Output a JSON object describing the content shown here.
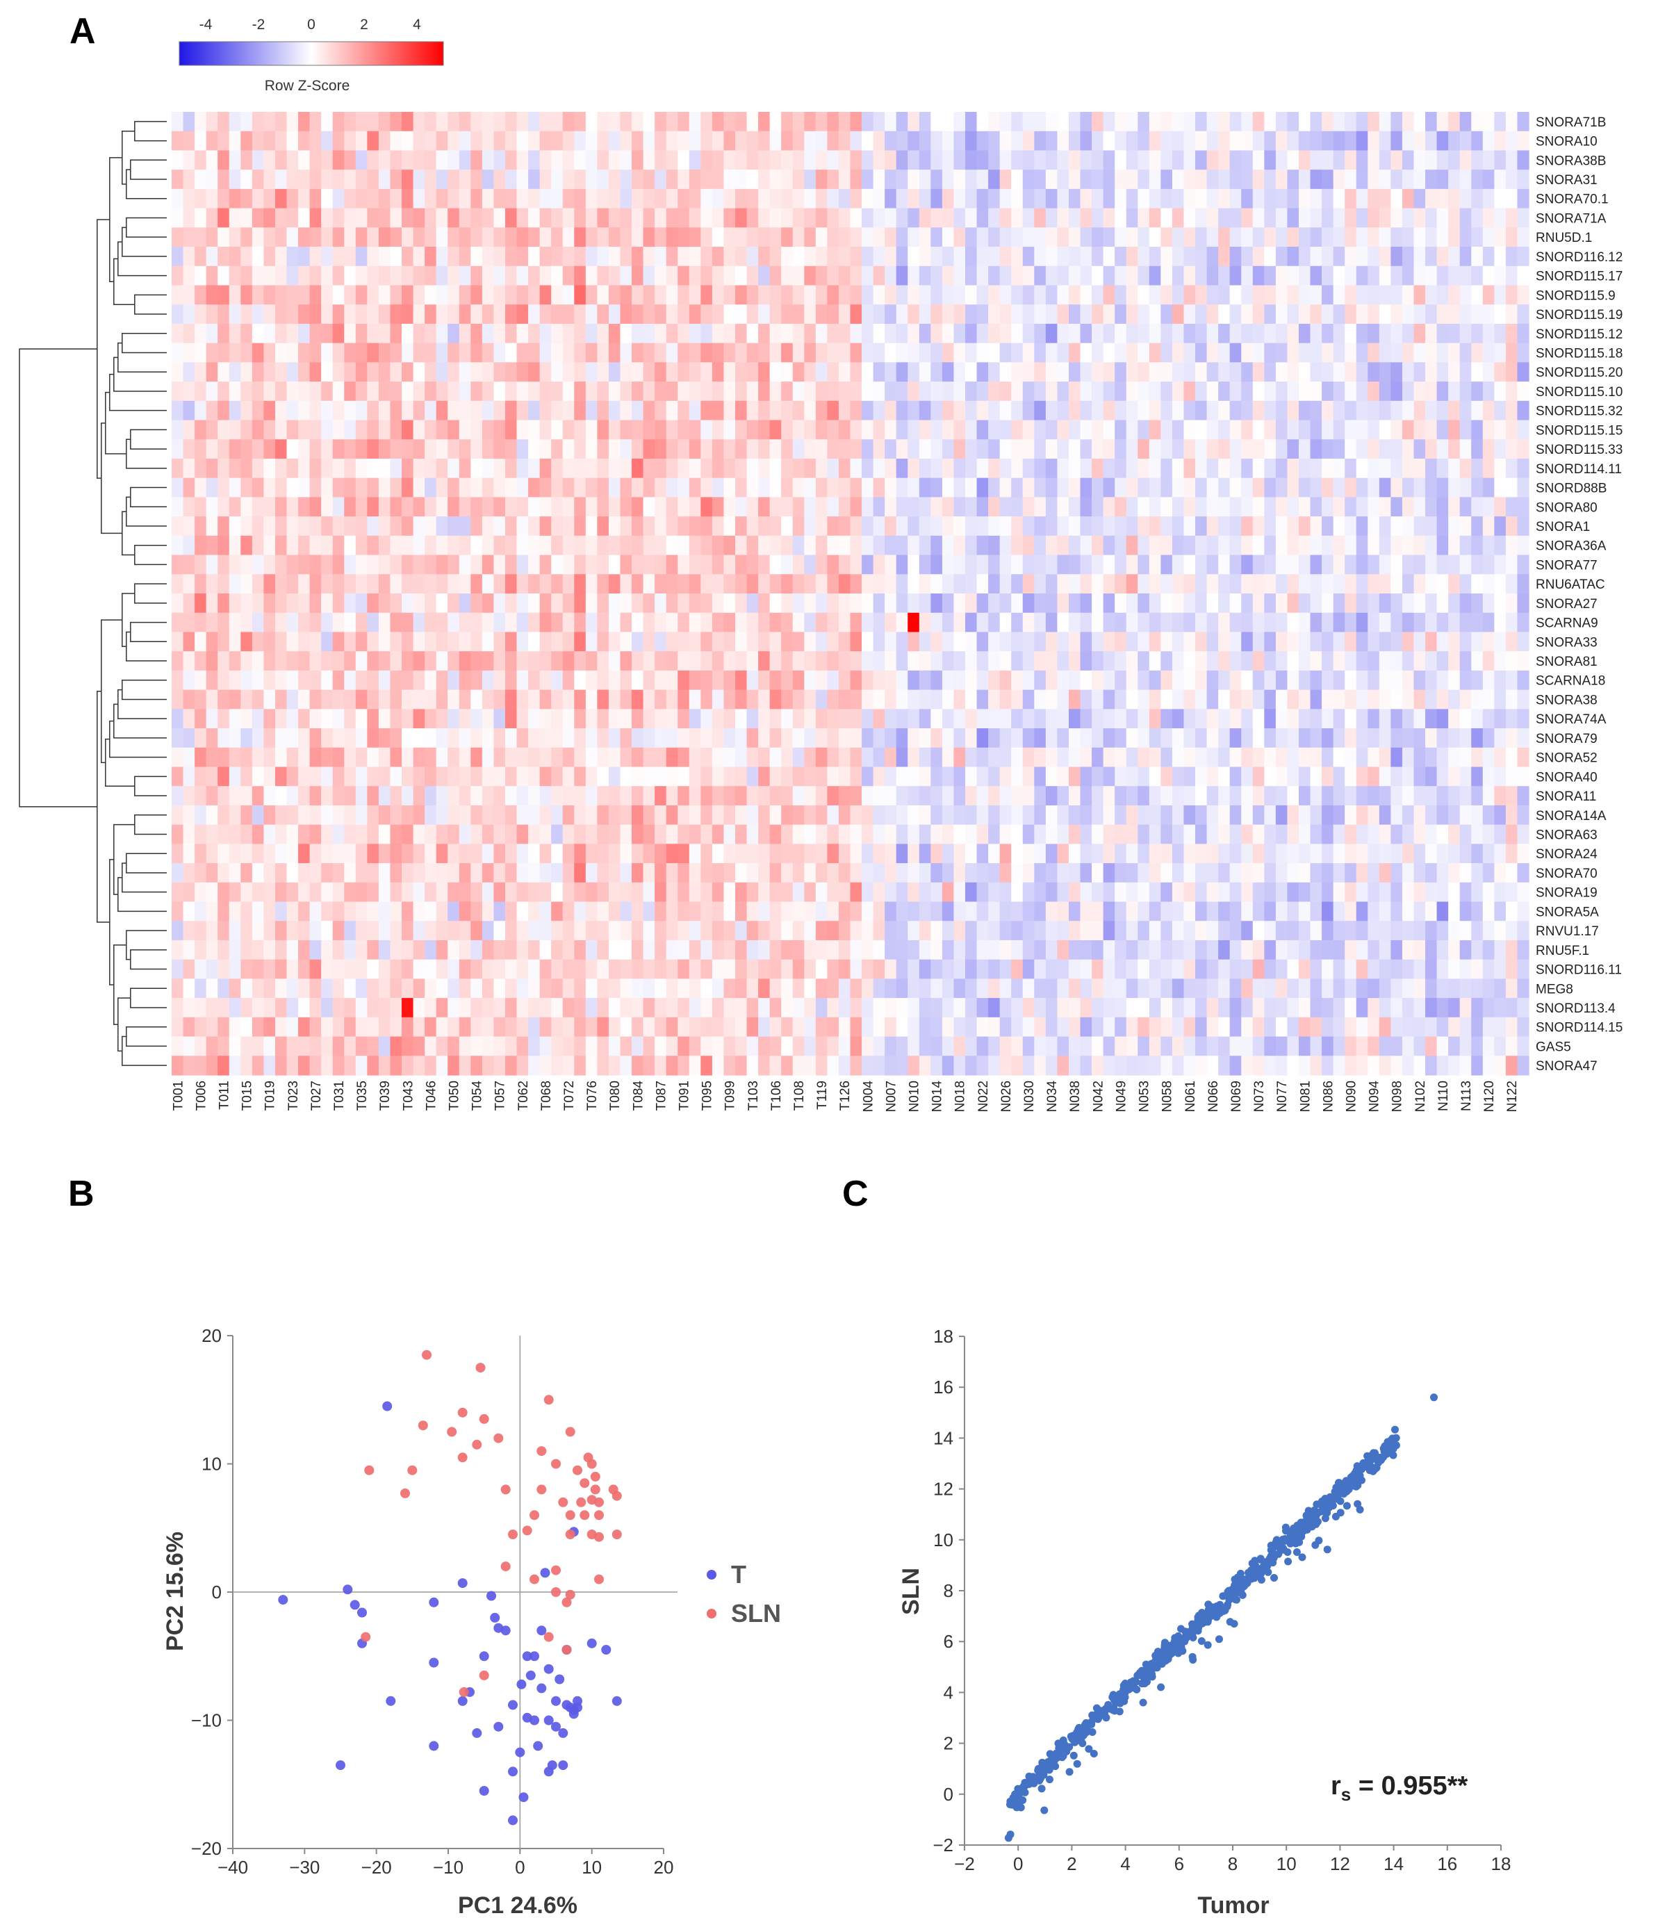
{
  "panels": {
    "A": {
      "letter": "A"
    },
    "B": {
      "letter": "B"
    },
    "C": {
      "letter": "C"
    }
  },
  "colors": {
    "low": "#1f17e6",
    "mid": "#ffffff",
    "high": "#ff0000",
    "pca_T": "#5a5ae6",
    "pca_SLN": "#ef6e6e",
    "scatter": "#4472c4"
  },
  "chart_data": [
    {
      "type": "heatmap",
      "panel": "A",
      "colorbar": {
        "title": "Row Z-Score",
        "ticks": [
          "-4",
          "-2",
          "0",
          "2",
          "4"
        ],
        "range": [
          -5,
          5
        ]
      },
      "rows": [
        "SNORA71B",
        "SNORA10",
        "SNORA38B",
        "SNORA31",
        "SNORA70.1",
        "SNORA71A",
        "RNU5D.1",
        "SNORD116.12",
        "SNORD115.17",
        "SNORD115.9",
        "SNORD115.19",
        "SNORD115.12",
        "SNORD115.18",
        "SNORD115.20",
        "SNORD115.10",
        "SNORD115.32",
        "SNORD115.15",
        "SNORD115.33",
        "SNORD114.11",
        "SNORD88B",
        "SNORA80",
        "SNORA1",
        "SNORA36A",
        "SNORA77",
        "RNU6ATAC",
        "SNORA27",
        "SCARNA9",
        "SNORA33",
        "SNORA81",
        "SCARNA18",
        "SNORA38",
        "SNORA74A",
        "SNORA79",
        "SNORA52",
        "SNORA40",
        "SNORA11",
        "SNORA14A",
        "SNORA63",
        "SNORA24",
        "SNORA70",
        "SNORA19",
        "SNORA5A",
        "RNVU1.17",
        "RNU5F.1",
        "SNORD116.11",
        "MEG8",
        "SNORD113.4",
        "SNORD114.15",
        "GAS5",
        "SNORA47"
      ],
      "column_labels": [
        "T001",
        "T006",
        "T011",
        "T015",
        "T019",
        "T023",
        "T027",
        "T031",
        "T035",
        "T039",
        "T043",
        "T046",
        "T050",
        "T054",
        "T057",
        "T062",
        "T068",
        "T072",
        "T076",
        "T080",
        "T084",
        "T087",
        "T091",
        "T095",
        "T099",
        "T103",
        "T106",
        "T108",
        "T119",
        "T126",
        "N004",
        "N007",
        "N010",
        "N014",
        "N018",
        "N022",
        "N026",
        "N030",
        "N034",
        "N038",
        "N042",
        "N049",
        "N053",
        "N058",
        "N061",
        "N066",
        "N069",
        "N073",
        "N077",
        "N081",
        "N086",
        "N090",
        "N094",
        "N098",
        "N102",
        "N110",
        "N113",
        "N120",
        "N122"
      ],
      "n_columns": 118,
      "n_tumor_columns": 60,
      "highlight_cells": [
        {
          "row": "SCARNA9",
          "column": "N010",
          "z": 5.0
        },
        {
          "row": "SNORD113.4",
          "column": "T043",
          "z": 4.6
        }
      ]
    },
    {
      "type": "scatter",
      "panel": "B",
      "xlabel": "PC1 24.6%",
      "ylabel": "PC2 15.6%",
      "xlim": [
        -40,
        20
      ],
      "ylim": [
        -20,
        20
      ],
      "xticks": [
        "−40",
        "−30",
        "−20",
        "−10",
        "0",
        "10",
        "20"
      ],
      "yticks": [
        "20",
        "10",
        "0",
        "−10",
        "−20"
      ],
      "series": [
        {
          "name": "T",
          "points": [
            [
              -33,
              -0.6
            ],
            [
              -24,
              0.2
            ],
            [
              -23,
              -1
            ],
            [
              -22,
              -1.6
            ],
            [
              -22,
              -4
            ],
            [
              -18,
              -8.5
            ],
            [
              -25,
              -13.5
            ],
            [
              -12,
              -0.8
            ],
            [
              -12,
              -5.5
            ],
            [
              -12,
              -12
            ],
            [
              -8,
              -8.5
            ],
            [
              -8,
              0.7
            ],
            [
              -7,
              -7.8
            ],
            [
              -6,
              -11
            ],
            [
              -5,
              -5
            ],
            [
              -5,
              -15.5
            ],
            [
              -4,
              -0.3
            ],
            [
              -3.5,
              -2
            ],
            [
              -3,
              -2.8
            ],
            [
              -3,
              -10.5
            ],
            [
              -2,
              -3
            ],
            [
              -1,
              -8.8
            ],
            [
              -1,
              -14
            ],
            [
              -1,
              -17.8
            ],
            [
              0,
              -12.5
            ],
            [
              0.2,
              -7.2
            ],
            [
              0.5,
              -16
            ],
            [
              1,
              -5
            ],
            [
              1,
              -9.8
            ],
            [
              1.5,
              -6.5
            ],
            [
              2,
              -5
            ],
            [
              2,
              -10
            ],
            [
              2.5,
              -12
            ],
            [
              3,
              -3
            ],
            [
              3,
              -7.5
            ],
            [
              3.5,
              1.5
            ],
            [
              4,
              -6
            ],
            [
              4,
              -10
            ],
            [
              4.5,
              -13.5
            ],
            [
              5,
              -8.5
            ],
            [
              5,
              -10.5
            ],
            [
              5.5,
              -6.8
            ],
            [
              6,
              -11
            ],
            [
              6,
              -13.5
            ],
            [
              6.5,
              -8.8
            ],
            [
              6.5,
              -4.5
            ],
            [
              7,
              -9
            ],
            [
              7.5,
              -9.2
            ],
            [
              7.5,
              -9.5
            ],
            [
              8,
              -9
            ],
            [
              8,
              -8.5
            ],
            [
              10,
              -4
            ],
            [
              12,
              -4.5
            ],
            [
              13.5,
              -8.5
            ],
            [
              -18.5,
              14.5
            ],
            [
              7.5,
              4.7
            ],
            [
              4,
              -14
            ]
          ]
        },
        {
          "name": "SLN",
          "points": [
            [
              -13,
              18.5
            ],
            [
              -5.5,
              17.5
            ],
            [
              -8,
              14
            ],
            [
              -13.5,
              13
            ],
            [
              -5,
              13.5
            ],
            [
              -9.5,
              12.5
            ],
            [
              -15,
              9.5
            ],
            [
              -16,
              7.7
            ],
            [
              -21,
              9.5
            ],
            [
              -8,
              10.5
            ],
            [
              -3,
              12
            ],
            [
              -6,
              11.5
            ],
            [
              4,
              15
            ],
            [
              7,
              12.5
            ],
            [
              3,
              11
            ],
            [
              5,
              10
            ],
            [
              9.5,
              10.5
            ],
            [
              10,
              10
            ],
            [
              8,
              9.5
            ],
            [
              10.5,
              9
            ],
            [
              9,
              8.5
            ],
            [
              -2,
              8
            ],
            [
              3,
              8
            ],
            [
              10.5,
              8
            ],
            [
              13,
              8
            ],
            [
              6,
              7
            ],
            [
              8.5,
              7
            ],
            [
              10,
              7.2
            ],
            [
              11,
              7
            ],
            [
              13.5,
              7.5
            ],
            [
              7,
              6
            ],
            [
              9,
              6
            ],
            [
              11,
              6
            ],
            [
              2,
              6
            ],
            [
              7,
              4.5
            ],
            [
              10,
              4.5
            ],
            [
              11,
              4.3
            ],
            [
              13.5,
              4.5
            ],
            [
              -1,
              4.5
            ],
            [
              1,
              4.8
            ],
            [
              -2,
              2
            ],
            [
              5,
              1.7
            ],
            [
              2,
              1
            ],
            [
              5,
              0
            ],
            [
              7,
              -0.2
            ],
            [
              11,
              1
            ],
            [
              6.5,
              -0.8
            ],
            [
              -21.5,
              -3.5
            ],
            [
              -7.8,
              -7.8
            ],
            [
              4,
              -3.5
            ],
            [
              -5,
              -6.5
            ],
            [
              6.5,
              -4.5
            ]
          ]
        }
      ]
    },
    {
      "type": "scatter",
      "panel": "C",
      "xlabel": "Tumor",
      "ylabel": "SLN",
      "xlim": [
        -2,
        18
      ],
      "ylim": [
        -2,
        18
      ],
      "xticks": [
        "−2",
        "0",
        "2",
        "4",
        "6",
        "8",
        "10",
        "12",
        "14",
        "16",
        "18"
      ],
      "yticks": [
        "18",
        "16",
        "14",
        "12",
        "10",
        "8",
        "6",
        "4",
        "2",
        "0",
        "−2"
      ],
      "annotation": {
        "base": "r",
        "sub": "s",
        "text": " = 0.955**"
      },
      "n_points": 640,
      "fit": {
        "slope": 0.985,
        "intercept": 0.05,
        "max_x": 15.5
      }
    }
  ]
}
